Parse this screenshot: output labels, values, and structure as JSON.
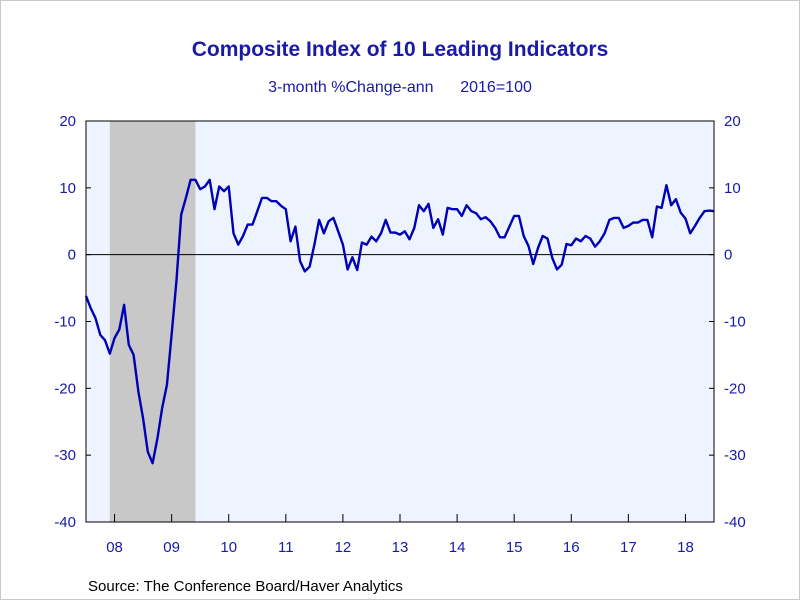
{
  "chart_data": {
    "type": "line",
    "title": "Composite Index of 10 Leading Indicators",
    "subtitle": "3-month %Change-ann      2016=100",
    "ylim": [
      -40,
      20
    ],
    "y_ticks": [
      20,
      10,
      0,
      -10,
      -20,
      -30,
      -40
    ],
    "y_tick_labels": [
      "20",
      "10",
      "0",
      "-10",
      "-20",
      "-30",
      "-40"
    ],
    "x_range": [
      2007.5,
      2018.5
    ],
    "x_year_labels": [
      "08",
      "09",
      "10",
      "11",
      "12",
      "13",
      "14",
      "15",
      "16",
      "17",
      "18"
    ],
    "x_label_years": [
      2008,
      2009,
      2010,
      2011,
      2012,
      2013,
      2014,
      2015,
      2016,
      2017,
      2018
    ],
    "recession": {
      "start": 2007.917,
      "end": 2009.417
    },
    "reference_line": 0,
    "series": [
      {
        "color": "#0000b4",
        "x": [
          2007.5,
          2007.583,
          2007.667,
          2007.75,
          2007.833,
          2007.917,
          2008.0,
          2008.083,
          2008.167,
          2008.25,
          2008.333,
          2008.417,
          2008.5,
          2008.583,
          2008.667,
          2008.75,
          2008.833,
          2008.917,
          2009.0,
          2009.083,
          2009.167,
          2009.25,
          2009.333,
          2009.417,
          2009.5,
          2009.583,
          2009.667,
          2009.75,
          2009.833,
          2009.917,
          2010.0,
          2010.083,
          2010.167,
          2010.25,
          2010.333,
          2010.417,
          2010.5,
          2010.583,
          2010.667,
          2010.75,
          2010.833,
          2010.917,
          2011.0,
          2011.083,
          2011.167,
          2011.25,
          2011.333,
          2011.417,
          2011.5,
          2011.583,
          2011.667,
          2011.75,
          2011.833,
          2011.917,
          2012.0,
          2012.083,
          2012.167,
          2012.25,
          2012.333,
          2012.417,
          2012.5,
          2012.583,
          2012.667,
          2012.75,
          2012.833,
          2012.917,
          2013.0,
          2013.083,
          2013.167,
          2013.25,
          2013.333,
          2013.417,
          2013.5,
          2013.583,
          2013.667,
          2013.75,
          2013.833,
          2013.917,
          2014.0,
          2014.083,
          2014.167,
          2014.25,
          2014.333,
          2014.417,
          2014.5,
          2014.583,
          2014.667,
          2014.75,
          2014.833,
          2014.917,
          2015.0,
          2015.083,
          2015.167,
          2015.25,
          2015.333,
          2015.417,
          2015.5,
          2015.583,
          2015.667,
          2015.75,
          2015.833,
          2015.917,
          2016.0,
          2016.083,
          2016.167,
          2016.25,
          2016.333,
          2016.417,
          2016.5,
          2016.583,
          2016.667,
          2016.75,
          2016.833,
          2016.917,
          2017.0,
          2017.083,
          2017.167,
          2017.25,
          2017.333,
          2017.417,
          2017.5,
          2017.583,
          2017.667,
          2017.75,
          2017.833,
          2017.917,
          2018.0,
          2018.083,
          2018.167,
          2018.25,
          2018.333,
          2018.417,
          2018.5
        ],
        "values": [
          -6.2,
          -8.0,
          -9.5,
          -12.0,
          -12.8,
          -14.8,
          -12.5,
          -11.2,
          -7.5,
          -13.5,
          -15.0,
          -20.5,
          -24.5,
          -29.5,
          -31.2,
          -27.5,
          -23.0,
          -19.5,
          -12.0,
          -4.0,
          6.0,
          8.5,
          11.2,
          11.2,
          9.8,
          10.2,
          11.2,
          6.8,
          10.2,
          9.5,
          10.2,
          3.2,
          1.5,
          2.8,
          4.5,
          4.5,
          6.5,
          8.5,
          8.5,
          8.0,
          8.0,
          7.3,
          6.8,
          2.0,
          4.2,
          -1.0,
          -2.5,
          -1.8,
          1.5,
          5.2,
          3.2,
          5.0,
          5.5,
          3.5,
          1.5,
          -2.2,
          -0.4,
          -2.3,
          1.8,
          1.5,
          2.7,
          2.0,
          3.2,
          5.2,
          3.3,
          3.3,
          3.0,
          3.5,
          2.3,
          4.0,
          7.4,
          6.5,
          7.6,
          4.0,
          5.3,
          3.0,
          7.0,
          6.8,
          6.8,
          5.8,
          7.4,
          6.5,
          6.2,
          5.3,
          5.6,
          5.0,
          4.0,
          2.6,
          2.6,
          4.2,
          5.8,
          5.8,
          2.8,
          1.3,
          -1.4,
          1.0,
          2.8,
          2.4,
          -0.5,
          -2.2,
          -1.5,
          1.6,
          1.4,
          2.4,
          2.0,
          2.8,
          2.4,
          1.2,
          2.0,
          3.2,
          5.2,
          5.5,
          5.5,
          4.0,
          4.3,
          4.8,
          4.8,
          5.2,
          5.2,
          2.6,
          7.2,
          7.0,
          10.4,
          7.4,
          8.3,
          6.3,
          5.4,
          3.2,
          4.3,
          5.5,
          6.5,
          6.6,
          6.5
        ]
      }
    ],
    "source": "Source:  The Conference Board/Haver Analytics"
  }
}
